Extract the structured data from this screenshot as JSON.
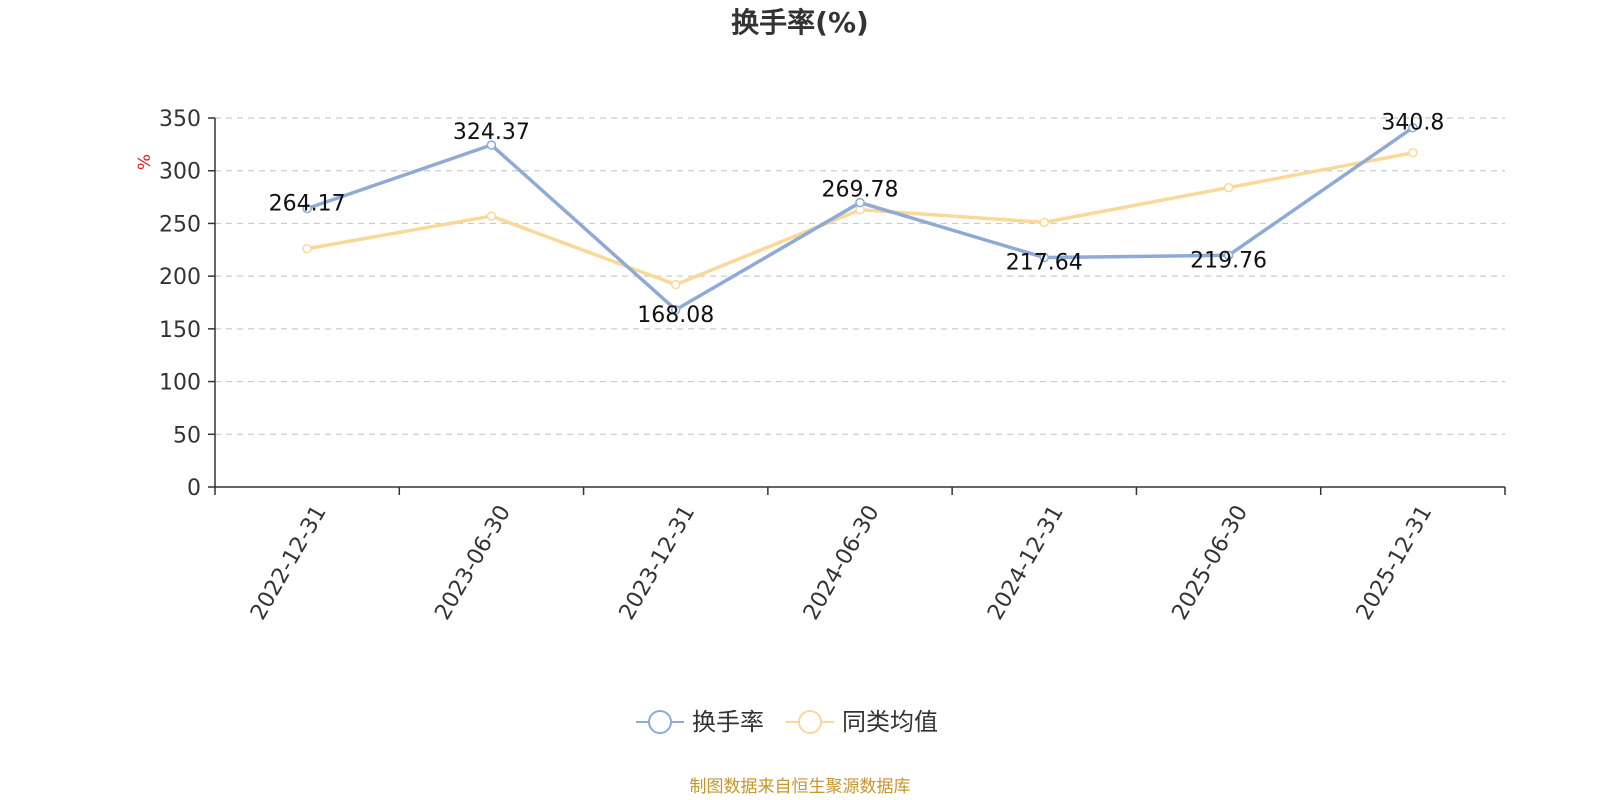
{
  "chart_data": {
    "type": "line",
    "title": "换手率(%)",
    "ylabel": "%",
    "xlabel": "",
    "ylim": [
      0,
      350
    ],
    "yticks": [
      0,
      50,
      100,
      150,
      200,
      250,
      300,
      350
    ],
    "grid": true,
    "legend_position": "bottom-center",
    "categories": [
      "2022-12-31",
      "2023-06-30",
      "2023-12-31",
      "2024-06-30",
      "2024-12-31",
      "2025-06-30",
      "2025-12-31"
    ],
    "series": [
      {
        "name": "换手率",
        "color": "#8eaad6",
        "values": [
          264.17,
          324.37,
          168.08,
          269.78,
          217.64,
          219.76,
          340.8
        ],
        "labels": [
          "264.17",
          "324.37",
          "168.08",
          "269.78",
          "217.64",
          "219.76",
          "340.8"
        ],
        "show_labels": true
      },
      {
        "name": "同类均值",
        "color": "#f9d99a",
        "values": [
          226,
          257,
          192,
          263,
          251,
          284,
          317
        ],
        "show_labels": false
      }
    ],
    "source": "制图数据来自恒生聚源数据库"
  }
}
